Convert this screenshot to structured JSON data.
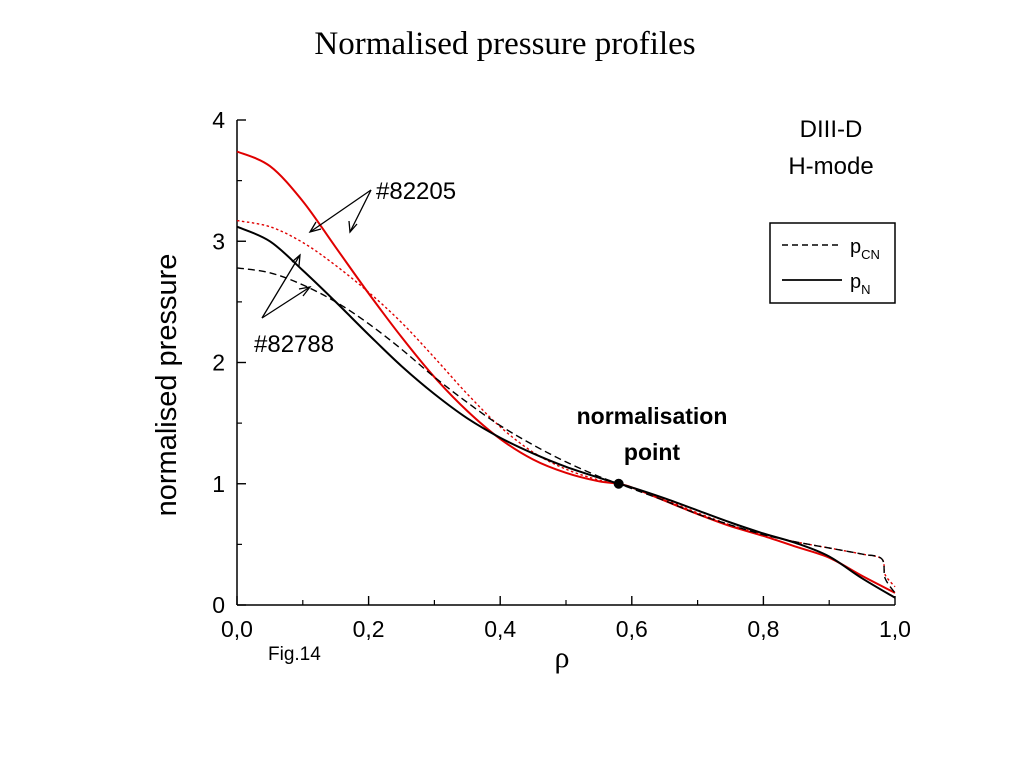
{
  "chart_data": {
    "type": "line",
    "title": "Normalised pressure profiles",
    "xlabel": "ρ",
    "ylabel": "normalised pressure",
    "xlim": [
      0.0,
      1.0
    ],
    "ylim": [
      0,
      4
    ],
    "x_ticks": [
      0.0,
      0.2,
      0.4,
      0.6,
      0.8,
      1.0
    ],
    "x_tick_labels": [
      "0,0",
      "0,2",
      "0,4",
      "0,6",
      "0,8",
      "1,0"
    ],
    "y_ticks": [
      0,
      1,
      2,
      3,
      4
    ],
    "y_tick_labels": [
      "0",
      "1",
      "2",
      "3",
      "4"
    ],
    "grid": false,
    "legend": {
      "placement": "top-right",
      "entries": [
        {
          "label": "p",
          "sub": "CN",
          "style": "dashed"
        },
        {
          "label": "p",
          "sub": "N",
          "style": "solid"
        }
      ]
    },
    "annotations": {
      "device": "DIII-D",
      "mode": "H-mode",
      "shot_a": "#82205",
      "shot_b": "#82788",
      "norm_point_line1": "normalisation",
      "norm_point_line2": "point",
      "fig_label": "Fig.14"
    },
    "normalisation_point": {
      "x": 0.58,
      "y": 1.0
    },
    "series": [
      {
        "shot": "#82205",
        "quantity": "pN",
        "color": "#e00000",
        "style": "solid",
        "x": [
          0.0,
          0.05,
          0.1,
          0.15,
          0.2,
          0.25,
          0.3,
          0.35,
          0.4,
          0.45,
          0.5,
          0.55,
          0.58,
          0.6,
          0.65,
          0.7,
          0.75,
          0.8,
          0.85,
          0.9,
          0.95,
          1.0
        ],
        "y": [
          3.74,
          3.62,
          3.33,
          2.95,
          2.57,
          2.21,
          1.88,
          1.6,
          1.37,
          1.2,
          1.09,
          1.02,
          1.0,
          0.97,
          0.86,
          0.75,
          0.65,
          0.57,
          0.48,
          0.39,
          0.24,
          0.1
        ]
      },
      {
        "shot": "#82205",
        "quantity": "pCN",
        "color": "#e00000",
        "style": "dotted",
        "x": [
          0.0,
          0.05,
          0.1,
          0.15,
          0.2,
          0.25,
          0.3,
          0.35,
          0.4,
          0.45,
          0.5,
          0.55,
          0.58,
          0.6,
          0.65,
          0.7,
          0.75,
          0.8,
          0.85,
          0.9,
          0.95,
          0.98,
          0.985,
          1.0
        ],
        "y": [
          3.17,
          3.12,
          2.99,
          2.8,
          2.58,
          2.33,
          2.04,
          1.74,
          1.47,
          1.26,
          1.12,
          1.03,
          1.0,
          0.97,
          0.87,
          0.76,
          0.66,
          0.58,
          0.52,
          0.47,
          0.42,
          0.38,
          0.25,
          0.15
        ]
      },
      {
        "shot": "#82788",
        "quantity": "pN",
        "color": "#000000",
        "style": "solid",
        "x": [
          0.0,
          0.05,
          0.1,
          0.15,
          0.2,
          0.25,
          0.3,
          0.35,
          0.4,
          0.45,
          0.5,
          0.55,
          0.58,
          0.6,
          0.65,
          0.7,
          0.75,
          0.8,
          0.85,
          0.9,
          0.95,
          1.0
        ],
        "y": [
          3.12,
          3.0,
          2.76,
          2.5,
          2.23,
          1.97,
          1.74,
          1.54,
          1.38,
          1.25,
          1.14,
          1.05,
          1.0,
          0.97,
          0.88,
          0.78,
          0.68,
          0.59,
          0.51,
          0.4,
          0.22,
          0.06
        ]
      },
      {
        "shot": "#82788",
        "quantity": "pCN",
        "color": "#000000",
        "style": "dashed",
        "x": [
          0.0,
          0.05,
          0.1,
          0.15,
          0.2,
          0.25,
          0.3,
          0.35,
          0.4,
          0.45,
          0.5,
          0.55,
          0.58,
          0.6,
          0.65,
          0.7,
          0.75,
          0.8,
          0.85,
          0.9,
          0.95,
          0.98,
          0.985,
          1.0
        ],
        "y": [
          2.78,
          2.74,
          2.64,
          2.5,
          2.32,
          2.11,
          1.88,
          1.67,
          1.48,
          1.32,
          1.18,
          1.06,
          1.0,
          0.96,
          0.86,
          0.75,
          0.66,
          0.58,
          0.52,
          0.47,
          0.42,
          0.38,
          0.22,
          0.1
        ]
      }
    ]
  }
}
